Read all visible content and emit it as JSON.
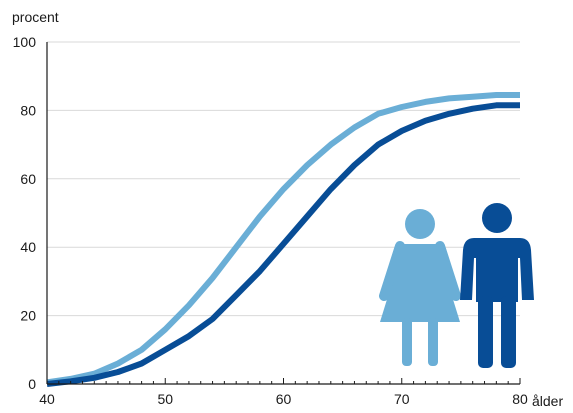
{
  "chart_data": {
    "type": "line",
    "ylabel": "procent",
    "xlabel": "ålder",
    "xlim": [
      40,
      80
    ],
    "ylim": [
      0,
      100
    ],
    "x_ticks": [
      40,
      50,
      60,
      70,
      80
    ],
    "y_ticks": [
      0,
      20,
      40,
      60,
      80,
      100
    ],
    "grid": "horizontal",
    "series": [
      {
        "color": "#6aaed6",
        "points": [
          [
            40,
            0.5
          ],
          [
            42,
            1.5
          ],
          [
            44,
            3
          ],
          [
            46,
            6
          ],
          [
            48,
            10
          ],
          [
            50,
            16
          ],
          [
            52,
            23
          ],
          [
            54,
            31
          ],
          [
            56,
            40
          ],
          [
            58,
            49
          ],
          [
            60,
            57
          ],
          [
            62,
            64
          ],
          [
            64,
            70
          ],
          [
            66,
            75
          ],
          [
            68,
            79
          ],
          [
            70,
            81
          ],
          [
            72,
            82.5
          ],
          [
            74,
            83.5
          ],
          [
            76,
            84
          ],
          [
            78,
            84.5
          ],
          [
            80,
            84.5
          ]
        ]
      },
      {
        "color": "#084d96",
        "points": [
          [
            40,
            0
          ],
          [
            42,
            0.8
          ],
          [
            44,
            1.8
          ],
          [
            46,
            3.5
          ],
          [
            48,
            6
          ],
          [
            50,
            10
          ],
          [
            52,
            14
          ],
          [
            54,
            19
          ],
          [
            56,
            26
          ],
          [
            58,
            33
          ],
          [
            60,
            41
          ],
          [
            62,
            49
          ],
          [
            64,
            57
          ],
          [
            66,
            64
          ],
          [
            68,
            70
          ],
          [
            70,
            74
          ],
          [
            72,
            77
          ],
          [
            74,
            79
          ],
          [
            76,
            80.5
          ],
          [
            78,
            81.5
          ],
          [
            80,
            81.5
          ]
        ]
      }
    ],
    "icons": [
      {
        "name": "female-figure-icon",
        "color": "#6aaed6"
      },
      {
        "name": "male-figure-icon",
        "color": "#084d96"
      }
    ]
  }
}
